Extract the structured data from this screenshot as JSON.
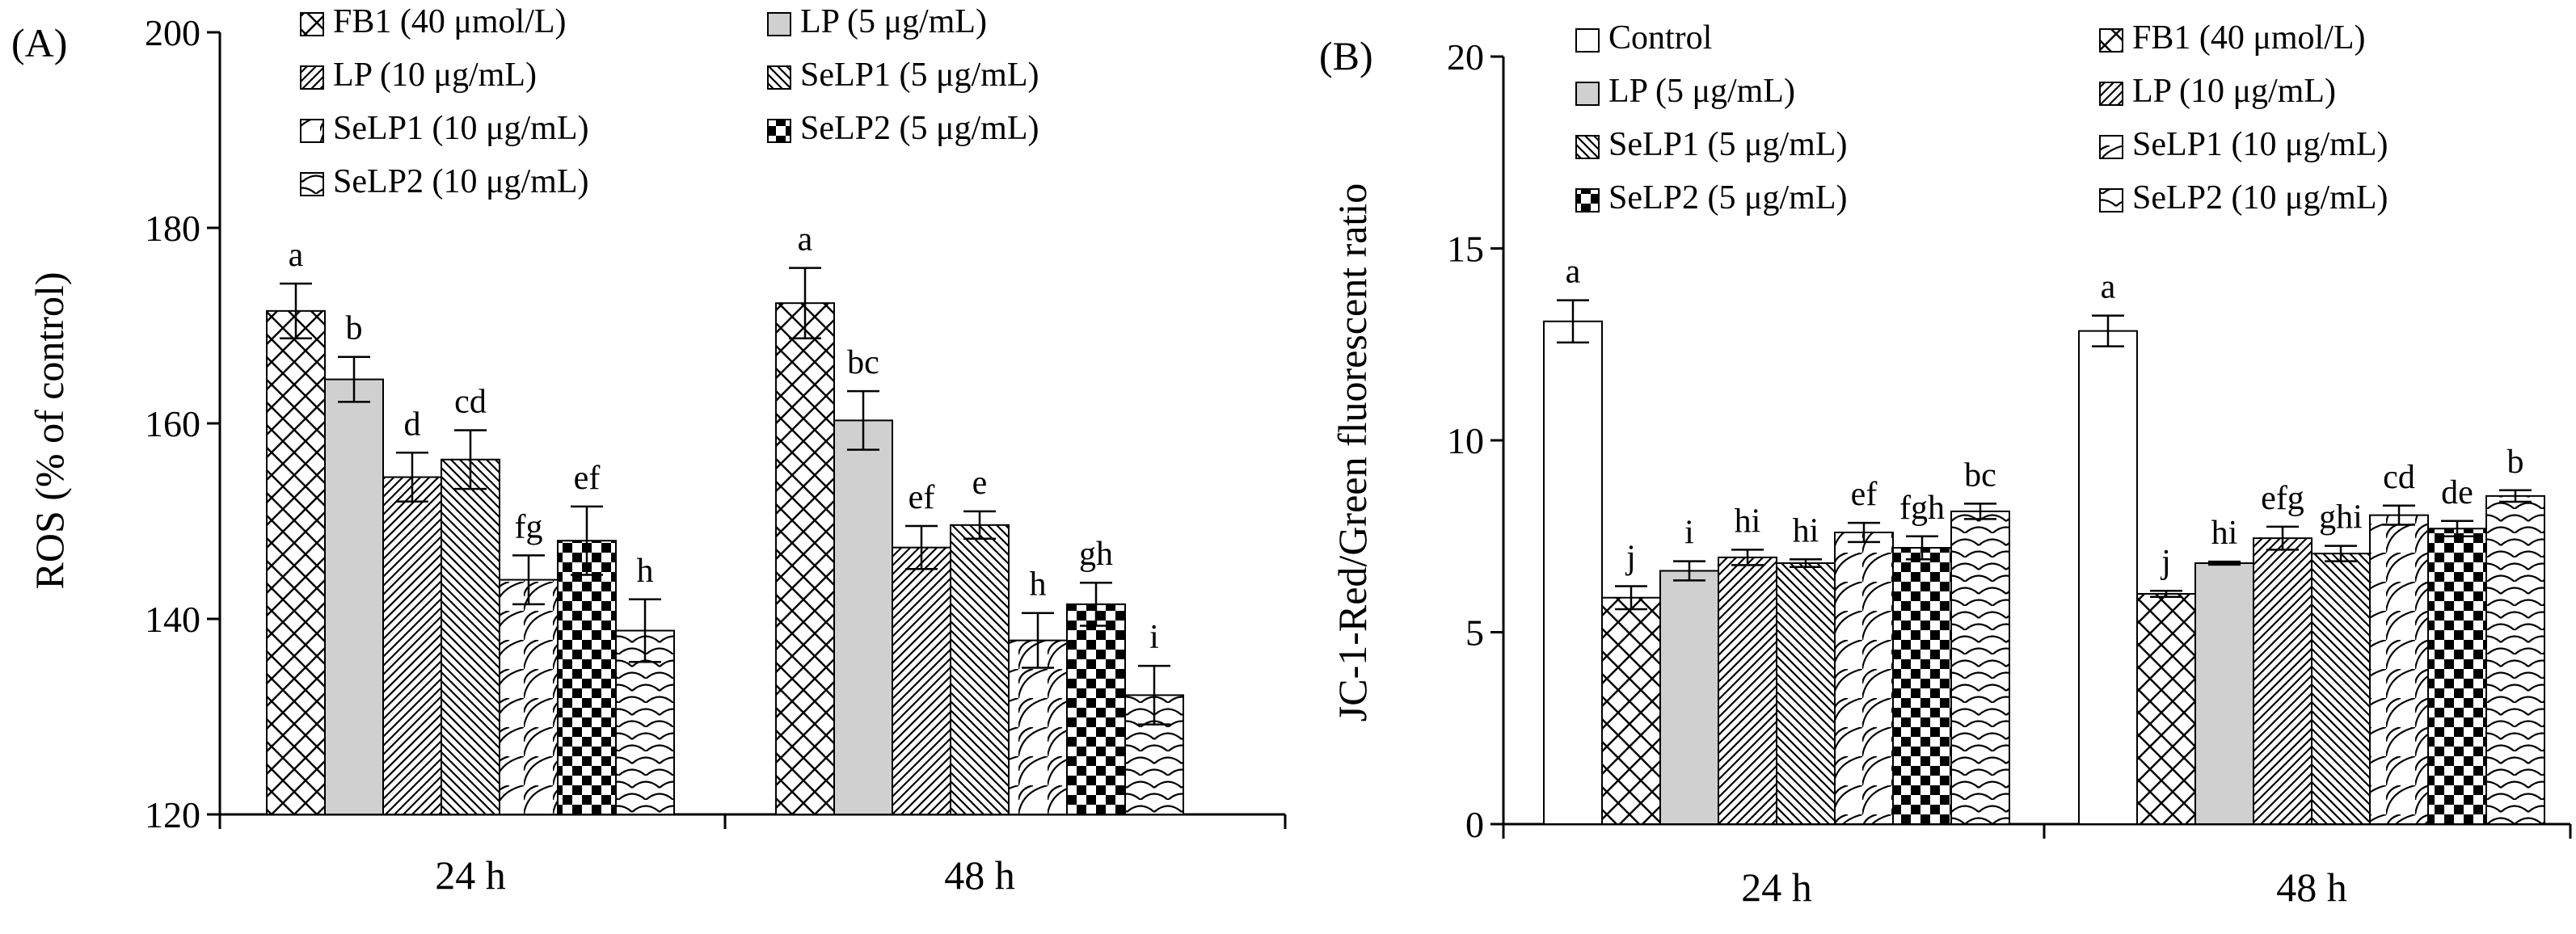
{
  "chart_data": [
    {
      "panel_label": "(A)",
      "type": "bar",
      "ylabel": "ROS (% of control)",
      "ylim": [
        120,
        200
      ],
      "yticks": [
        "120",
        "140",
        "160",
        "180",
        "200"
      ],
      "categories": [
        "24 h",
        "48 h"
      ],
      "series": [
        {
          "name": "FB1 (40 μmol/L)",
          "pattern": "p-cross",
          "values": [
            171.5,
            172.3
          ],
          "errors": [
            2.8,
            3.6
          ],
          "labels": [
            "a",
            "a"
          ]
        },
        {
          "name": "LP (5 μg/mL)",
          "pattern": "p-gray",
          "values": [
            164.5,
            160.3
          ],
          "errors": [
            2.3,
            3.0
          ],
          "labels": [
            "b",
            "bc"
          ]
        },
        {
          "name": "LP (10 μg/mL)",
          "pattern": "p-fwd",
          "values": [
            154.5,
            147.3
          ],
          "errors": [
            2.5,
            2.2
          ],
          "labels": [
            "d",
            "ef"
          ]
        },
        {
          "name": "SeLP1 (5 μg/mL)",
          "pattern": "p-back",
          "values": [
            156.3,
            149.6
          ],
          "errors": [
            3.0,
            1.4
          ],
          "labels": [
            "cd",
            "e"
          ]
        },
        {
          "name": "SeLP1 (10 μg/mL)",
          "pattern": "p-arc",
          "values": [
            144.0,
            137.8
          ],
          "errors": [
            2.5,
            2.8
          ],
          "labels": [
            "fg",
            "h"
          ]
        },
        {
          "name": "SeLP2 (5 μg/mL)",
          "pattern": "p-check",
          "values": [
            148.0,
            141.5
          ],
          "errors": [
            3.5,
            2.2
          ],
          "labels": [
            "ef",
            "gh"
          ]
        },
        {
          "name": "SeLP2 (10 μg/mL)",
          "pattern": "p-scale",
          "values": [
            138.8,
            132.2
          ],
          "errors": [
            3.2,
            3.0
          ],
          "labels": [
            "h",
            "i"
          ]
        }
      ]
    },
    {
      "panel_label": "(B)",
      "type": "bar",
      "ylabel": "JC-1-Red/Green fluorescent ratio",
      "ylim": [
        0,
        20
      ],
      "yticks": [
        "0",
        "5",
        "10",
        "15",
        "20"
      ],
      "categories": [
        "24 h",
        "48 h"
      ],
      "series": [
        {
          "name": "Control",
          "pattern": "p-white",
          "values": [
            13.1,
            12.85
          ],
          "errors": [
            0.55,
            0.4
          ],
          "labels": [
            "a",
            "a"
          ]
        },
        {
          "name": "FB1 (40 μmol/L)",
          "pattern": "p-cross",
          "values": [
            5.9,
            6.0
          ],
          "errors": [
            0.3,
            0.08
          ],
          "labels": [
            "j",
            "j"
          ]
        },
        {
          "name": "LP (5 μg/mL)",
          "pattern": "p-gray",
          "values": [
            6.6,
            6.8
          ],
          "errors": [
            0.25,
            0.04
          ],
          "labels": [
            "i",
            "hi"
          ]
        },
        {
          "name": "LP (10 μg/mL)",
          "pattern": "p-fwd",
          "values": [
            6.95,
            7.45
          ],
          "errors": [
            0.2,
            0.3
          ],
          "labels": [
            "hi",
            "efg"
          ]
        },
        {
          "name": "SeLP1 (5 μg/mL)",
          "pattern": "p-back",
          "values": [
            6.8,
            7.05
          ],
          "errors": [
            0.1,
            0.2
          ],
          "labels": [
            "hi",
            "ghi"
          ]
        },
        {
          "name": "SeLP1 (10 μg/mL)",
          "pattern": "p-arc",
          "values": [
            7.6,
            8.05
          ],
          "errors": [
            0.25,
            0.25
          ],
          "labels": [
            "ef",
            "cd"
          ]
        },
        {
          "name": "SeLP2 (5 μg/mL)",
          "pattern": "p-check",
          "values": [
            7.2,
            7.7
          ],
          "errors": [
            0.3,
            0.2
          ],
          "labels": [
            "fgh",
            "de"
          ]
        },
        {
          "name": "SeLP2 (10 μg/mL)",
          "pattern": "p-scale",
          "values": [
            8.15,
            8.55
          ],
          "errors": [
            0.2,
            0.15
          ],
          "labels": [
            "bc",
            "b"
          ]
        }
      ]
    }
  ]
}
